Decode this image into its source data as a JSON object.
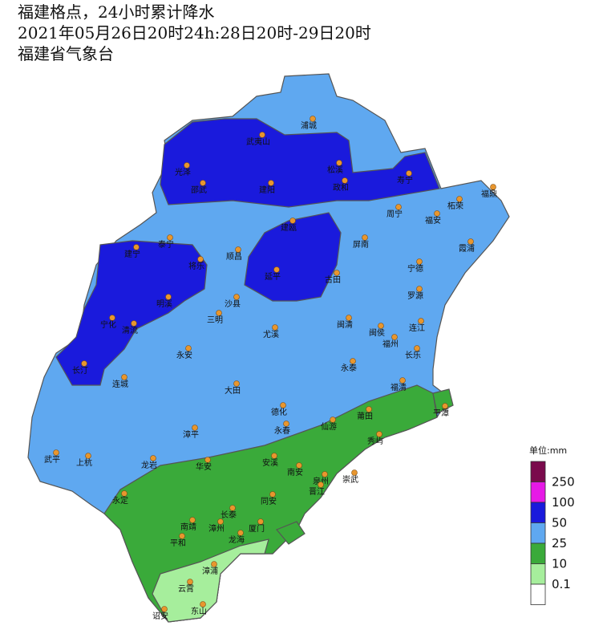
{
  "header": {
    "lines": [
      "福建格点，24小时累计降水",
      "2021年05月26日20时24h:28日20时-29日20时",
      "福建省气象台"
    ]
  },
  "legend": {
    "unit": "单位:mm",
    "levels": [
      250,
      100,
      50,
      25,
      10,
      0.1
    ],
    "colors": [
      "#7a0a4c",
      "#e619e6",
      "#1a1adc",
      "#5fa8f0",
      "#3aaa3a",
      "#a6ee9c",
      "#ffffff"
    ]
  },
  "cities": [
    "浦城",
    "武夷山",
    "光泽",
    "松溪",
    "寿宁",
    "福鼎",
    "邵武",
    "建阳",
    "政和",
    "柘荣",
    "周宁",
    "福安",
    "泰宁",
    "建瓯",
    "建宁",
    "将乐",
    "顺昌",
    "屏南",
    "霞浦",
    "宁德",
    "延平",
    "古田",
    "明溪",
    "沙县",
    "罗源",
    "三明",
    "宁化",
    "清流",
    "闽清",
    "闽侯",
    "尤溪",
    "连江",
    "福州",
    "永安",
    "长乐",
    "长汀",
    "永泰",
    "连城",
    "大田",
    "福清",
    "德化",
    "平潭",
    "莆田",
    "仙游",
    "永春",
    "漳平",
    "秀屿",
    "武平",
    "上杭",
    "龙岩",
    "华安",
    "安溪",
    "南安",
    "泉州",
    "晋江",
    "崇武",
    "永定",
    "同安",
    "长泰",
    "南靖",
    "漳州",
    "厦门",
    "龙海",
    "平和",
    "漳浦",
    "云霄",
    "诏安",
    "东山"
  ]
}
